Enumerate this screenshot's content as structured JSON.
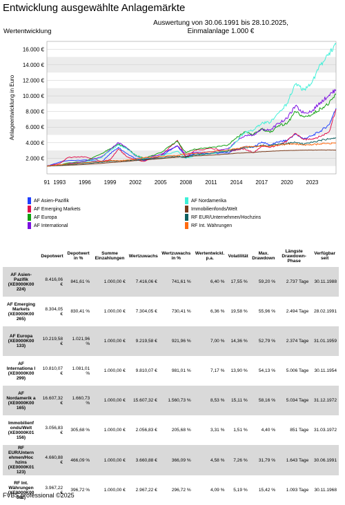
{
  "title": "Entwicklung ausgewählte Anlagemärkte",
  "subtitle_line1": "Auswertung von 30.06.1991 bis 28.10.2025,",
  "subtitle_line2": "Einmalanlage 1.000 €",
  "left_label": "Wertentwicklung",
  "footer": "FVBS professional ©2025",
  "chart_data": {
    "type": "line",
    "ylabel": "Anlageentwicklung in Euro",
    "ylim": [
      0,
      17000
    ],
    "y_ticks": [
      "2.000 €",
      "4.000 €",
      "6.000 €",
      "8.000 €",
      "10.000 €",
      "12.000 €",
      "14.000 €",
      "16.000 €"
    ],
    "y_tick_values": [
      2000,
      4000,
      6000,
      8000,
      10000,
      12000,
      14000,
      16000
    ],
    "x_ticks": [
      "91",
      "1993",
      "1996",
      "1999",
      "2002",
      "2005",
      "2008",
      "2011",
      "2014",
      "2017",
      "2020",
      "2023"
    ],
    "x_tick_values": [
      1991.5,
      1993,
      1996,
      1999,
      2002,
      2005,
      2008,
      2011,
      2014,
      2017,
      2020,
      2023
    ],
    "xlim": [
      1991.5,
      2025.83
    ],
    "grid": true,
    "x": [
      1991.5,
      1993,
      1994,
      1996,
      1998,
      1999,
      2000,
      2001,
      2002,
      2003,
      2005,
      2007,
      2008,
      2009,
      2011,
      2013,
      2014,
      2015,
      2016,
      2017,
      2018,
      2019,
      2020,
      2021,
      2022,
      2023,
      2024,
      2025,
      2025.83
    ],
    "series": [
      {
        "name": "AF Asien-Pazifik",
        "color": "#1f3fff",
        "values": [
          1000,
          1500,
          1700,
          1800,
          1500,
          2600,
          3400,
          2600,
          2000,
          1700,
          2300,
          3600,
          2200,
          2600,
          2600,
          2700,
          3100,
          3500,
          3400,
          4100,
          3700,
          4100,
          4300,
          5100,
          4500,
          4900,
          5500,
          6300,
          8416
        ]
      },
      {
        "name": "AF Emerging Markets",
        "color": "#e0104c",
        "values": [
          1000,
          1300,
          2100,
          2200,
          1600,
          1800,
          3200,
          2200,
          1800,
          1600,
          2300,
          4300,
          2000,
          3000,
          3300,
          2900,
          3100,
          3200,
          2700,
          3500,
          3400,
          3700,
          4200,
          5200,
          4400,
          4500,
          4800,
          5400,
          8304
        ]
      },
      {
        "name": "AF Europa",
        "color": "#10a010",
        "values": [
          1000,
          1100,
          1400,
          1600,
          2600,
          3200,
          3800,
          3300,
          2400,
          2000,
          2700,
          4200,
          2700,
          3200,
          3400,
          3700,
          4600,
          5400,
          5000,
          5800,
          5300,
          6200,
          6400,
          8000,
          7300,
          7600,
          8400,
          9000,
          10219
        ]
      },
      {
        "name": "AF International",
        "color": "#7b10e0",
        "values": [
          1000,
          1100,
          1300,
          1600,
          2200,
          3100,
          4000,
          3300,
          2300,
          1900,
          2500,
          3600,
          2500,
          2700,
          2800,
          3200,
          4200,
          4900,
          5000,
          5700,
          5600,
          6500,
          7100,
          8700,
          7800,
          8100,
          9200,
          10100,
          10810
        ]
      },
      {
        "name": "AF Nordamerika",
        "color": "#3ef0d8",
        "values": [
          1000,
          1100,
          1200,
          1500,
          2100,
          3000,
          3700,
          3200,
          2400,
          1900,
          2300,
          2900,
          2000,
          2300,
          2600,
          3000,
          4200,
          5300,
          5600,
          6500,
          6600,
          7800,
          9000,
          11500,
          10800,
          11800,
          14000,
          15500,
          16607
        ]
      },
      {
        "name": "Immobilienfonds/Welt",
        "color": "#7a3a1a",
        "values": [
          1000,
          1050,
          1100,
          1200,
          1350,
          1450,
          1520,
          1600,
          1700,
          1800,
          1950,
          2150,
          2250,
          2300,
          2400,
          2550,
          2650,
          2700,
          2750,
          2850,
          2900,
          2950,
          3000,
          3020,
          3050,
          3050,
          3060,
          3060,
          3057
        ]
      },
      {
        "name": "RF EUR/Unternehmen/Hochzins",
        "color": "#0f6060",
        "values": [
          1000,
          1100,
          1180,
          1350,
          1500,
          1600,
          1650,
          1700,
          1800,
          1850,
          2050,
          2250,
          2100,
          2450,
          2650,
          2900,
          3200,
          3350,
          3450,
          3650,
          3650,
          3850,
          3900,
          4050,
          3800,
          4050,
          4300,
          4500,
          4661
        ]
      },
      {
        "name": "RF Int. Währungen",
        "color": "#ff6a10",
        "values": [
          1000,
          1150,
          1250,
          1450,
          1600,
          1700,
          1680,
          1750,
          1900,
          2050,
          2250,
          2350,
          2550,
          2600,
          2850,
          3050,
          3250,
          3450,
          3500,
          3600,
          3550,
          3700,
          3800,
          3850,
          3700,
          3750,
          3850,
          3900,
          3967
        ]
      }
    ]
  },
  "table": {
    "headers": [
      "",
      "Depotwert",
      "Depotwert in %",
      "Summe Einzahlungen",
      "Wertzuwachs",
      "Wertzuwachs in %",
      "Wertentwickl. p.a.",
      "Volatilität",
      "Max. Drawdown",
      "Längste Drawdown-Phase",
      "Verfügbar seit"
    ],
    "rows": [
      [
        "AF Asien-Pazifik (XE0000K00 224)",
        "8.416,06 €",
        "841,61 %",
        "1.000,00 €",
        "7.416,06 €",
        "741,61 %",
        "6,40 %",
        "17,55 %",
        "59,20 %",
        "2.737 Tage",
        "30.11.1988"
      ],
      [
        "AF Emerging Markets (XE0000K00 265)",
        "8.304,05 €",
        "830,41 %",
        "1.000,00 €",
        "7.304,05 €",
        "730,41 %",
        "6,36 %",
        "19,58 %",
        "55,96 %",
        "2.494 Tage",
        "28.02.1991"
      ],
      [
        "AF Europa (XE0000K00 133)",
        "10.219,58 €",
        "1.021,96 %",
        "1.000,00 €",
        "9.219,58 €",
        "921,96 %",
        "7,00 %",
        "14,36 %",
        "52,79 %",
        "2.374 Tage",
        "31.01.1959"
      ],
      [
        "AF Internationa l (XE0000K00 299)",
        "10.810,07 €",
        "1.081,01 %",
        "1.000,00 €",
        "9.810,07 €",
        "981,01 %",
        "7,17 %",
        "13,90 %",
        "54,13 %",
        "5.006 Tage",
        "30.11.1954"
      ],
      [
        "AF Nordamerik a (XE0000K00 165)",
        "16.607,32 €",
        "1.660,73 %",
        "1.000,00 €",
        "15.607,32 €",
        "1.560,73 %",
        "8,53 %",
        "15,11 %",
        "58,16 %",
        "5.034 Tage",
        "31.12.1972"
      ],
      [
        "Immobilienf onds/Welt (XE0000K01 156)",
        "3.056,83 €",
        "305,68 %",
        "1.000,00 €",
        "2.056,83 €",
        "205,68 %",
        "3,31 %",
        "1,51 %",
        "4,40 %",
        "851 Tage",
        "31.03.1972"
      ],
      [
        "RF EUR/Untern ehmen/Hoc hzins (XE0000K01 123)",
        "4.660,88 €",
        "466,09 %",
        "1.000,00 €",
        "3.660,88 €",
        "366,09 %",
        "4,58 %",
        "7,26 %",
        "31,79 %",
        "1.643 Tage",
        "30.06.1991"
      ],
      [
        "RF Int. Währungen (XE0000K00 562)",
        "3.967,22 €",
        "396,72 %",
        "1.000,00 €",
        "2.967,22 €",
        "296,72 %",
        "4,09 %",
        "5,19 %",
        "15,42 %",
        "1.093 Tage",
        "30.11.1968"
      ]
    ]
  }
}
